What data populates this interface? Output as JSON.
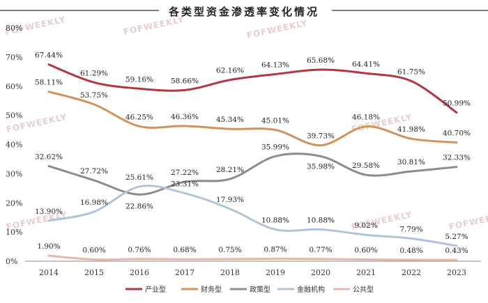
{
  "chart_data": {
    "type": "line",
    "title": "各类型资金渗透率变化情况",
    "xlabel": "",
    "ylabel": "",
    "ylim": [
      0,
      80
    ],
    "yticks": [
      0,
      10,
      20,
      30,
      40,
      50,
      60,
      70,
      80
    ],
    "ytick_labels": [
      "0%",
      "10%",
      "20%",
      "30%",
      "40%",
      "50%",
      "60%",
      "70%",
      "80%"
    ],
    "categories": [
      "2014",
      "2015",
      "2016",
      "2017",
      "2018",
      "2019",
      "2020",
      "2021",
      "2022",
      "2023"
    ],
    "grid": false,
    "legend_position": "bottom",
    "series": [
      {
        "name": "产业型",
        "color": "#b2373f",
        "values": [
          67.44,
          61.29,
          59.16,
          58.66,
          62.16,
          64.13,
          65.68,
          64.41,
          61.75,
          50.99
        ],
        "labels": [
          "67.44%",
          "61.29%",
          "59.16%",
          "58.66%",
          "62.16%",
          "64.13%",
          "65.68%",
          "64.41%",
          "61.75%",
          "50.99%"
        ]
      },
      {
        "name": "财务型",
        "color": "#d4915a",
        "values": [
          58.11,
          53.75,
          46.25,
          46.36,
          45.34,
          45.01,
          39.73,
          46.18,
          41.98,
          40.7
        ],
        "labels": [
          "58.11%",
          "53.75%",
          "46.25%",
          "46.36%",
          "45.34%",
          "45.01%",
          "39.73%",
          "46.18%",
          "41.98%",
          "40.70%"
        ]
      },
      {
        "name": "政策型",
        "color": "#8c8c8c",
        "values": [
          32.62,
          27.72,
          22.86,
          27.22,
          28.21,
          35.99,
          35.98,
          29.58,
          30.81,
          32.33
        ],
        "labels": [
          "32.62%",
          "27.72%",
          "22.86%",
          "27.22%",
          "28.21%",
          "35.99%",
          "35.98%",
          "29.58%",
          "30.81%",
          "32.33%"
        ]
      },
      {
        "name": "金融机构",
        "color": "#aec4dd",
        "values": [
          13.9,
          16.98,
          25.61,
          23.31,
          17.93,
          10.88,
          10.88,
          9.02,
          7.79,
          5.27
        ],
        "labels": [
          "13.90%",
          "16.98%",
          "25.61%",
          "23.31%",
          "17.93%",
          "10.88%",
          "10.88%",
          "9.02%",
          "7.79%",
          "5.27%"
        ]
      },
      {
        "name": "公共型",
        "color": "#e6b9a6",
        "values": [
          1.9,
          0.6,
          0.76,
          0.68,
          0.75,
          0.87,
          0.77,
          0.6,
          0.48,
          0.43
        ],
        "labels": [
          "1.90%",
          "0.60%",
          "0.76%",
          "0.68%",
          "0.75%",
          "0.87%",
          "0.77%",
          "0.60%",
          "0.48%",
          "0.43%"
        ]
      }
    ]
  },
  "watermark": "FOFWEEKLY",
  "style": {
    "axis_color": "#888888",
    "title_rule_color": "#333333"
  }
}
